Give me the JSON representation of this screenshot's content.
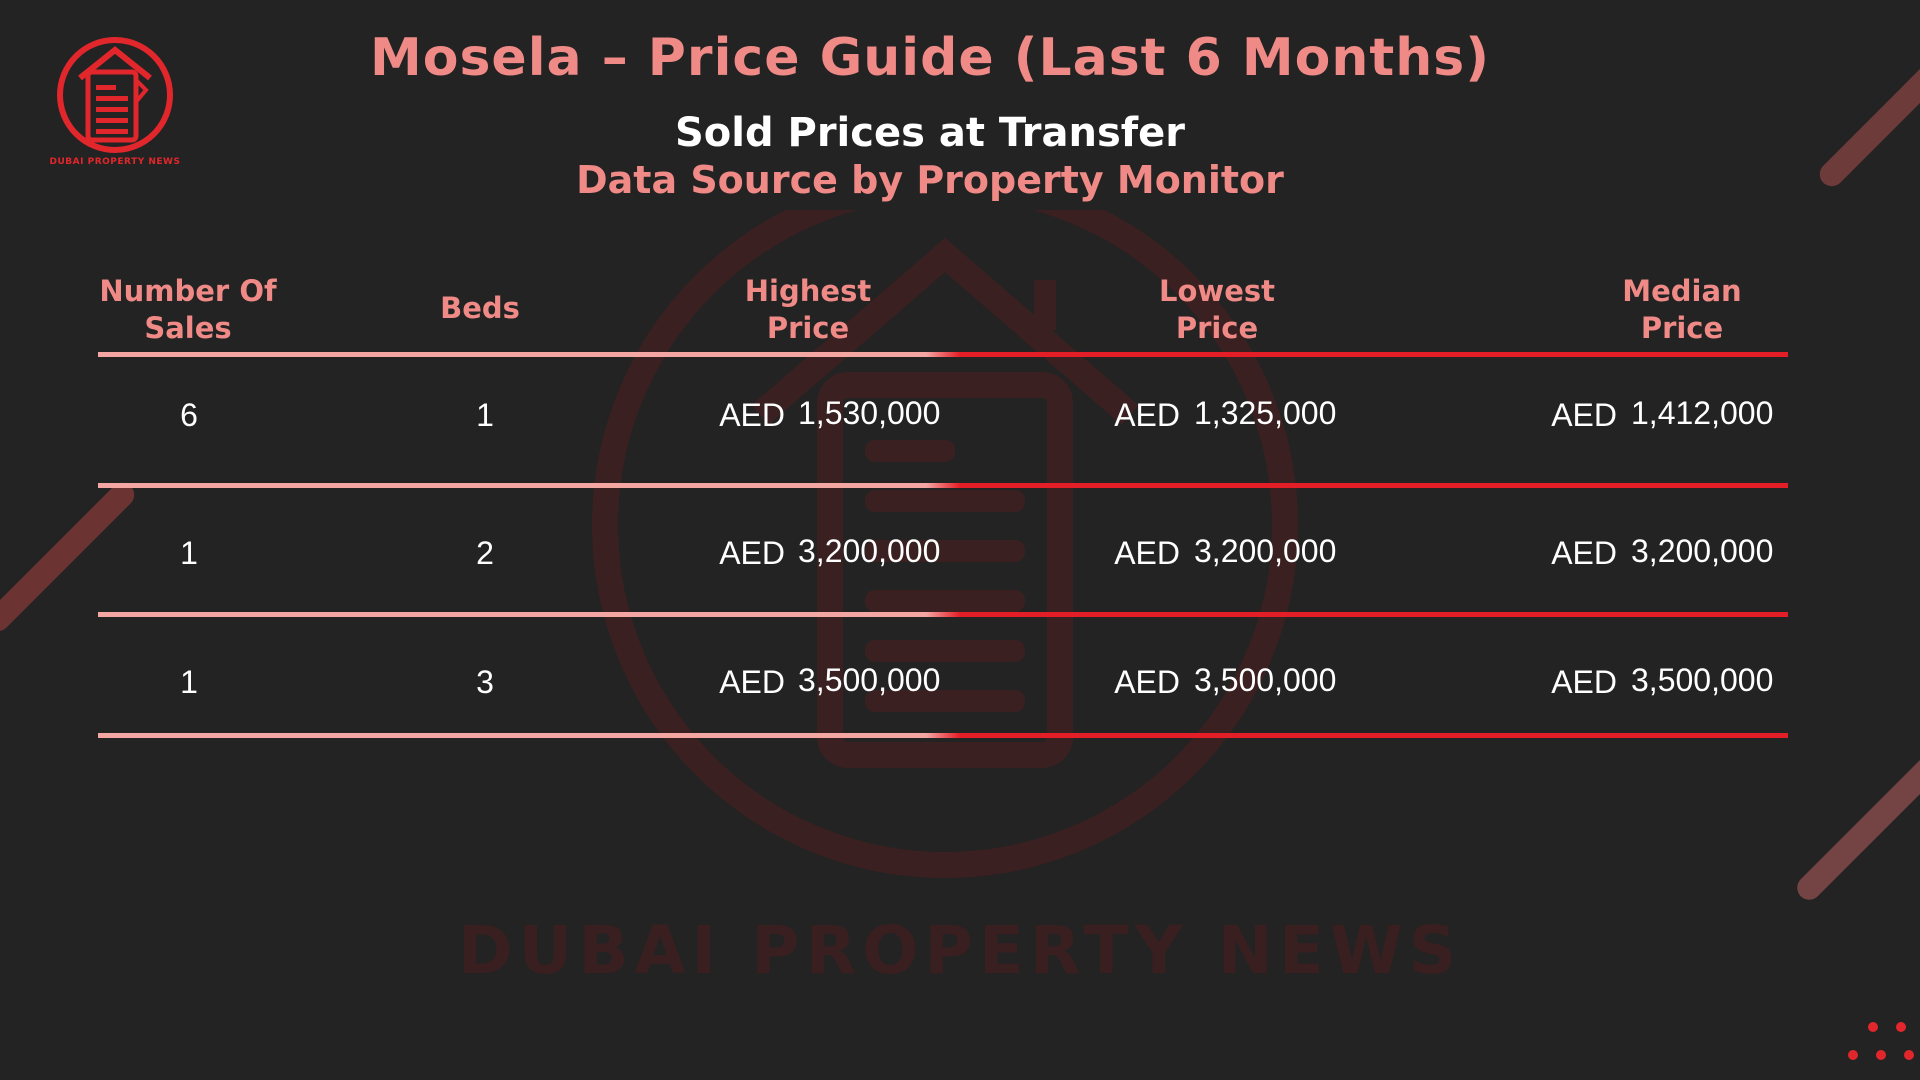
{
  "title": "Mosela – Price Guide (Last 6 Months)",
  "subtitle": "Sold Prices at Transfer",
  "source": "Data Source by Property Monitor",
  "brand": {
    "name": "DUBAI PROPERTY NEWS",
    "watermark": "DUBAI PROPERTY NEWS",
    "accent": "#e2272c",
    "header_color": "#f08a87",
    "background": "#232323"
  },
  "table": {
    "headers": {
      "sales": [
        "Number Of",
        "Sales"
      ],
      "beds": "Beds",
      "highest": [
        "Highest",
        "Price"
      ],
      "lowest": [
        "Lowest",
        "Price"
      ],
      "median": [
        "Median",
        "Price"
      ]
    },
    "currency": "AED",
    "rows": [
      {
        "sales": "6",
        "beds": "1",
        "highest": "1,530,000",
        "lowest": "1,325,000",
        "median": "1,412,000"
      },
      {
        "sales": "1",
        "beds": "2",
        "highest": "3,200,000",
        "lowest": "3,200,000",
        "median": "3,200,000"
      },
      {
        "sales": "1",
        "beds": "3",
        "highest": "3,500,000",
        "lowest": "3,500,000",
        "median": "3,500,000"
      }
    ]
  },
  "icons": [
    "house-document-logo-icon",
    "house-document-watermark-icon"
  ]
}
